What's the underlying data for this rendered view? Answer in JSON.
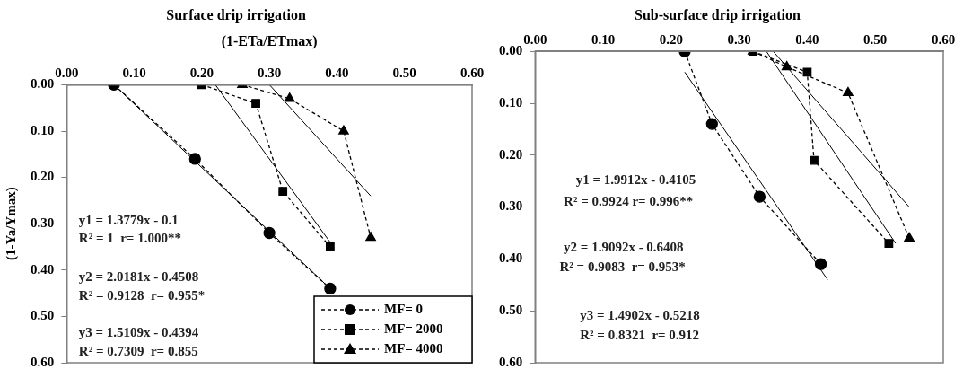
{
  "chart_data": [
    {
      "type": "line",
      "title": "Surface drip irrigation",
      "xlabel": "(1-ETa/ETmax)",
      "ylabel": "(1-Ya/Ymax)",
      "xlim": [
        0,
        0.6
      ],
      "ylim": [
        0.6,
        0
      ],
      "xticks": [
        {
          "value": 0,
          "label": "0.00"
        },
        {
          "value": 0.1,
          "label": "0.10"
        },
        {
          "value": 0.2,
          "label": "0.20"
        },
        {
          "value": 0.3,
          "label": "0.30"
        },
        {
          "value": 0.4,
          "label": "0.40"
        },
        {
          "value": 0.5,
          "label": "0.50"
        },
        {
          "value": 0.6,
          "label": "0.60"
        }
      ],
      "yticks": [
        {
          "value": 0,
          "label": "0.00"
        },
        {
          "value": 0.1,
          "label": "0.10"
        },
        {
          "value": 0.2,
          "label": "0.20"
        },
        {
          "value": 0.3,
          "label": "0.30"
        },
        {
          "value": 0.4,
          "label": "0.40"
        },
        {
          "value": 0.5,
          "label": "0.50"
        },
        {
          "value": 0.6,
          "label": "0.60"
        }
      ],
      "grid": false,
      "legend": "bottom right",
      "series": [
        {
          "name": "MF= 0",
          "color": "#000000",
          "marker": "circle",
          "line_style": "dashed",
          "x": [
            0.07,
            0.19,
            0.3,
            0.39
          ],
          "values": [
            0,
            0.16,
            0.32,
            0.44
          ]
        },
        {
          "name": "MF= 2000",
          "color": "#000000",
          "marker": "square",
          "line_style": "dashed",
          "x": [
            0.2,
            0.28,
            0.32,
            0.39
          ],
          "values": [
            0,
            0.04,
            0.23,
            0.35
          ]
        },
        {
          "name": "MF= 4000",
          "color": "#000000",
          "marker": "triangle",
          "line_style": "dashed",
          "x": [
            0.26,
            0.33,
            0.41,
            0.45
          ],
          "values": [
            0,
            0.03,
            0.1,
            0.33
          ]
        },
        {
          "color": "#000000",
          "marker": "none",
          "line_style": "solid",
          "x": [
            0.07,
            0.39
          ],
          "values": [
            0,
            0.44
          ]
        },
        {
          "color": "#000000",
          "marker": "none",
          "line_style": "solid",
          "x": [
            0.22,
            0.39
          ],
          "values": [
            0,
            0.34
          ]
        },
        {
          "color": "#000000",
          "marker": "none",
          "line_style": "solid",
          "x": [
            0.3,
            0.45
          ],
          "values": [
            0,
            0.24
          ]
        }
      ],
      "annotations": [
        "y1 = 1.3779x - 0.1",
        "R² = 1  r= 1.000**",
        "y2 = 2.0181x - 0.4508",
        "R² = 0.9128  r= 0.955*",
        "y3 = 1.5109x - 0.4394",
        "R² = 0.7309  r= 0.855"
      ]
    },
    {
      "type": "line",
      "title": "Sub-surface drip irrigation",
      "xlim": [
        0,
        0.6
      ],
      "ylim": [
        0.6,
        0
      ],
      "xticks": [
        {
          "value": 0,
          "label": "0.00"
        },
        {
          "value": 0.1,
          "label": "0.10"
        },
        {
          "value": 0.2,
          "label": "0.20"
        },
        {
          "value": 0.3,
          "label": "0.30"
        },
        {
          "value": 0.4,
          "label": "0.40"
        },
        {
          "value": 0.5,
          "label": "0.50"
        },
        {
          "value": 0.6,
          "label": "0.60"
        }
      ],
      "yticks": [
        {
          "value": 0,
          "label": "0.00"
        },
        {
          "value": 0.1,
          "label": "0.10"
        },
        {
          "value": 0.2,
          "label": "0.20"
        },
        {
          "value": 0.3,
          "label": "0.30"
        },
        {
          "value": 0.4,
          "label": "0.40"
        },
        {
          "value": 0.5,
          "label": "0.50"
        },
        {
          "value": 0.6,
          "label": "0.60"
        }
      ],
      "grid": false,
      "series": [
        {
          "color": "#000000",
          "marker": "circle",
          "line_style": "dashed",
          "x": [
            0.22,
            0.26,
            0.33,
            0.42
          ],
          "values": [
            0,
            0.14,
            0.28,
            0.41
          ]
        },
        {
          "color": "#000000",
          "marker": "square",
          "line_style": "dashed",
          "x": [
            0.32,
            0.4,
            0.41,
            0.52
          ],
          "values": [
            0,
            0.04,
            0.21,
            0.37
          ]
        },
        {
          "color": "#000000",
          "marker": "triangle",
          "line_style": "dashed",
          "x": [
            0.32,
            0.37,
            0.46,
            0.55
          ],
          "values": [
            0,
            0.03,
            0.08,
            0.36
          ]
        },
        {
          "color": "#000000",
          "marker": "none",
          "line_style": "solid",
          "x": [
            0.22,
            0.43
          ],
          "values": [
            0.04,
            0.44
          ]
        },
        {
          "color": "#000000",
          "marker": "none",
          "line_style": "solid",
          "x": [
            0.34,
            0.53
          ],
          "values": [
            0,
            0.37
          ]
        },
        {
          "color": "#000000",
          "marker": "none",
          "line_style": "solid",
          "x": [
            0.35,
            0.55
          ],
          "values": [
            0,
            0.3
          ]
        }
      ],
      "annotations": [
        "y1 = 1.9912x - 0.4105",
        "R² = 0.9924 r= 0.996**",
        "y2 = 1.9092x - 0.6408",
        "R² = 0.9083  r= 0.953*",
        "y3 = 1.4902x - 0.5218",
        "R² = 0.8321  r= 0.912"
      ]
    }
  ]
}
